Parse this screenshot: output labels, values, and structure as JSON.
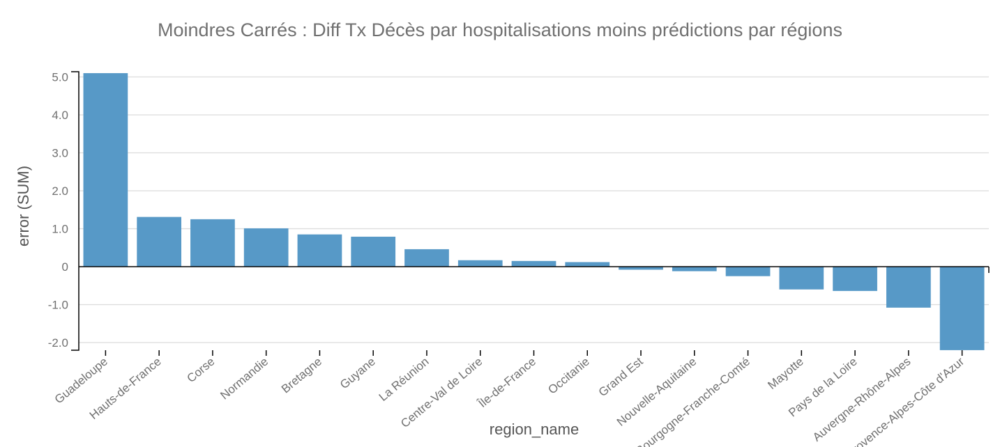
{
  "chart_data": {
    "type": "bar",
    "title": "Moindres Carrés : Diff Tx Décès par hospitalisations moins prédictions par régions",
    "xlabel": "region_name",
    "ylabel": "error (SUM)",
    "ylim": [
      -2.2,
      5.1
    ],
    "yticks": [
      5.0,
      4.0,
      3.0,
      2.0,
      1.0,
      0,
      -1.0,
      -2.0
    ],
    "ytick_labels": [
      "5.0",
      "4.0",
      "3.0",
      "2.0",
      "1.0",
      "0",
      "-1.0",
      "-2.0"
    ],
    "grid": true,
    "color": "#5799c7",
    "categories": [
      "Guadeloupe",
      "Hauts-de-France",
      "Corse",
      "Normandie",
      "Bretagne",
      "Guyane",
      "La Réunion",
      "Centre-Val de Loire",
      "Île-de-France",
      "Occitanie",
      "Grand Est",
      "Nouvelle-Aquitaine",
      "Bourgogne-Franche-Comté",
      "Mayotte",
      "Pays de la Loire",
      "Auvergne-Rhône-Alpes",
      "Provence-Alpes-Côte d'Azur"
    ],
    "values": [
      5.1,
      1.31,
      1.25,
      1.01,
      0.85,
      0.79,
      0.46,
      0.17,
      0.15,
      0.12,
      -0.08,
      -0.12,
      -0.25,
      -0.6,
      -0.64,
      -1.08,
      -2.2
    ]
  }
}
